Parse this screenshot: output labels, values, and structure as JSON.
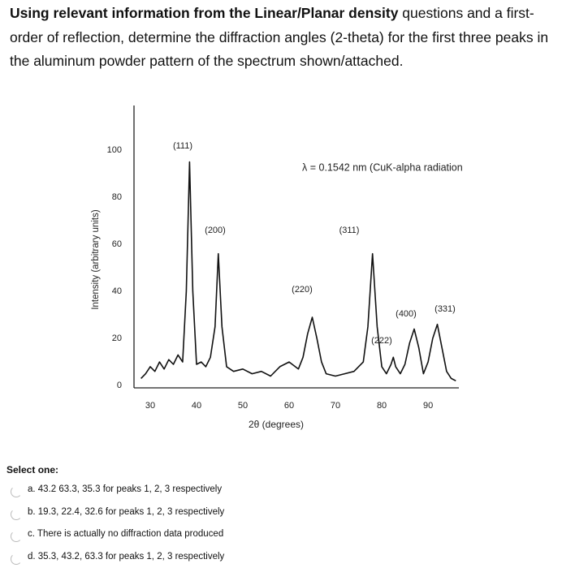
{
  "question": {
    "bold": "Using relevant information from the Linear/Planar density",
    "text": " questions and a first-order of reflection, determine the diffraction angles (2-theta) for the first three peaks in the aluminum powder pattern of the spectrum shown/attached."
  },
  "chart_data": {
    "type": "line",
    "x_label": "2θ (degrees)",
    "y_label": "Intensity (arbitrary units)",
    "annotation": "λ = 0.1542 nm (CuK-alpha radiation",
    "peak_labels": [
      "(111)",
      "(200)",
      "(220)",
      "(311)",
      "(222)",
      "(400)",
      "(331)"
    ],
    "x": [
      28,
      29,
      30,
      31,
      32,
      33,
      34,
      35,
      36,
      37,
      37.8,
      38.5,
      39.2,
      40,
      41,
      42,
      43,
      44,
      44.7,
      45.5,
      46.5,
      48,
      50,
      52,
      54,
      56,
      58,
      60,
      62,
      63,
      64,
      65,
      66,
      67,
      68,
      70,
      72,
      74,
      76,
      77,
      78,
      79,
      80,
      81,
      82,
      82.5,
      83,
      84,
      85,
      86,
      87,
      88,
      89,
      90,
      91,
      92,
      93,
      94,
      95,
      96
    ],
    "values": [
      3,
      5,
      8,
      6,
      10,
      7,
      11,
      9,
      13,
      10,
      40,
      95,
      40,
      9,
      10,
      8,
      12,
      25,
      56,
      25,
      8,
      6,
      7,
      5,
      6,
      4,
      8,
      10,
      7,
      12,
      22,
      29,
      20,
      10,
      5,
      4,
      5,
      6,
      10,
      25,
      56,
      25,
      8,
      5,
      9,
      12,
      8,
      5,
      9,
      18,
      24,
      16,
      5,
      10,
      20,
      26,
      16,
      6,
      3,
      2
    ],
    "color": "#111111",
    "xlim": [
      26.5,
      97
    ],
    "ylim": [
      -1,
      119
    ],
    "xticks": [
      30,
      40,
      50,
      60,
      70,
      80,
      90
    ],
    "yticks": [
      0,
      20,
      40,
      60,
      80,
      100
    ]
  },
  "select": {
    "prompt": "Select one:",
    "options": [
      "a. 43.2 63.3, 35.3 for peaks 1, 2, 3 respectively",
      "b. 19.3, 22.4, 32.6 for peaks 1, 2, 3 respectively",
      "c. There is actually no diffraction data produced",
      "d. 35.3, 43.2, 63.3 for peaks 1, 2, 3 respectively"
    ]
  }
}
